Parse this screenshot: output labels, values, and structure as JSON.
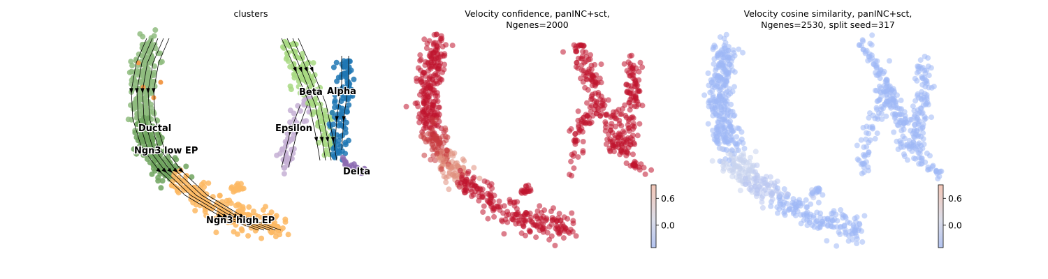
{
  "chart_data": [
    {
      "type": "scatter",
      "title": "clusters",
      "clusters": [
        {
          "name": "Ductal",
          "color": "#8fbc7f"
        },
        {
          "name": "Ngn3 low EP",
          "color": "#6fa35e"
        },
        {
          "name": "Ngn3 high EP",
          "color": "#fdb863"
        },
        {
          "name": "Epsilon",
          "color": "#c5b0d5"
        },
        {
          "name": "Beta",
          "color": "#a8d982"
        },
        {
          "name": "Alpha",
          "color": "#1f77b4"
        },
        {
          "name": "Delta",
          "color": "#8c6bb1"
        }
      ],
      "labels": [
        "Ductal",
        "Ngn3 low EP",
        "Ngn3 high EP",
        "Epsilon",
        "Beta",
        "Alpha",
        "Delta"
      ],
      "overlay": "velocity stream arrows"
    },
    {
      "type": "scatter",
      "title": "Velocity confidence, panINC+sct,",
      "subtitle": "Ngenes=2000",
      "colormap": "coolwarm",
      "colorbar_ticks": [
        "0.6",
        "0.0"
      ],
      "colorbar_range": [
        -0.5,
        0.9
      ]
    },
    {
      "type": "scatter",
      "title": "Velocity cosine similarity, panINC+sct,",
      "subtitle": "Ngenes=2530, split seed=317",
      "colormap": "coolwarm",
      "colorbar_ticks": [
        "0.6",
        "0.0"
      ],
      "colorbar_range": [
        -0.5,
        0.9
      ]
    }
  ]
}
